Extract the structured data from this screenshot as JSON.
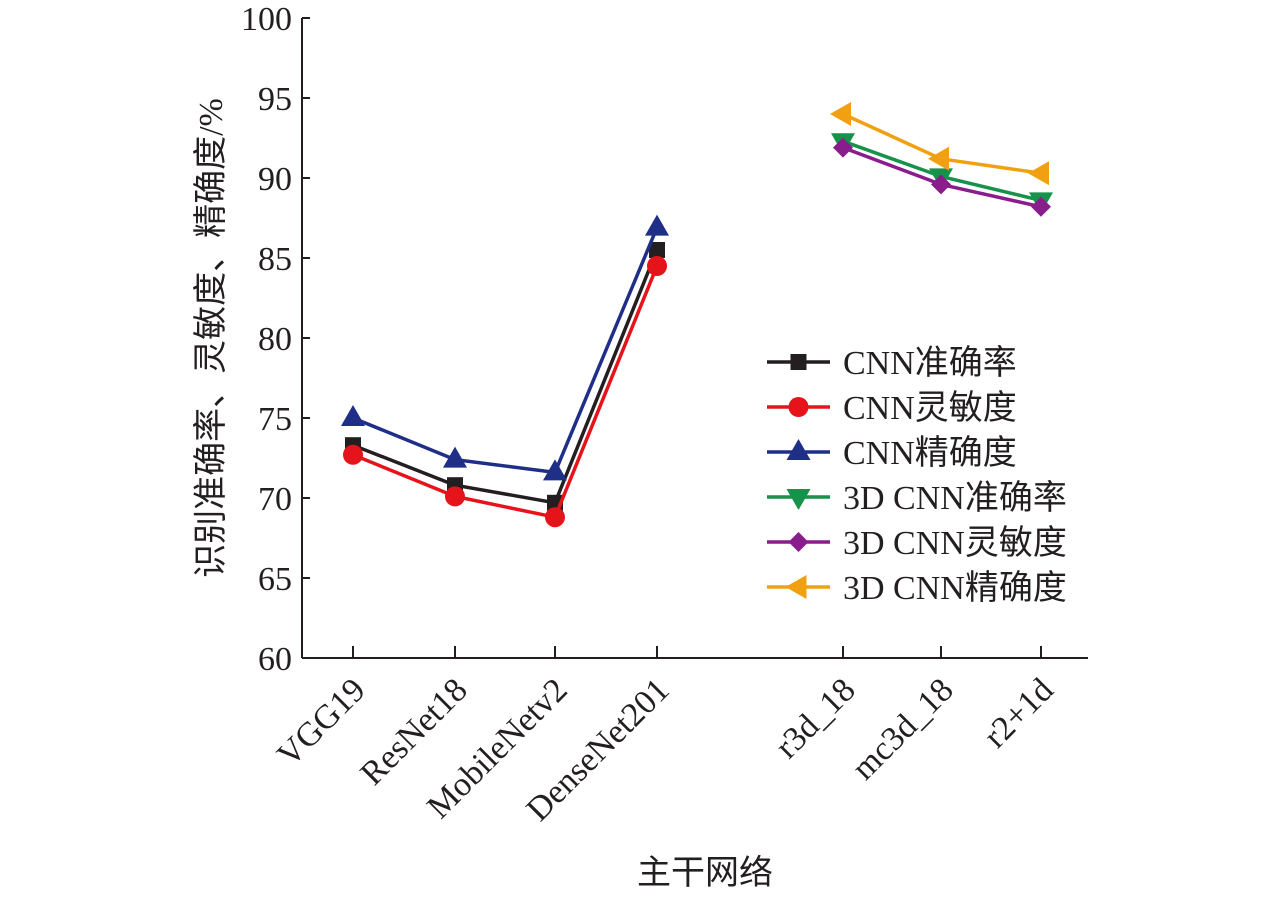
{
  "chart_data": {
    "type": "line",
    "categories": [
      "VGG19",
      "ResNet18",
      "MobileNetv2",
      "DenseNet201",
      "r3d_18",
      "mc3d_18",
      "r2+1d"
    ],
    "xlabel": "主干网络",
    "ylabel": "识别准确率、灵敏度、精确度/%",
    "ylim": [
      60,
      100
    ],
    "yticks": [
      60,
      65,
      70,
      75,
      80,
      85,
      90,
      95,
      100
    ],
    "grid": false,
    "legend": "right",
    "series": [
      {
        "name": "CNN准确率",
        "color": "#231f20",
        "marker": "square",
        "values": [
          73.3,
          70.8,
          69.7,
          85.5,
          null,
          null,
          null
        ]
      },
      {
        "name": "CNN灵敏度",
        "color": "#e5141b",
        "marker": "circle",
        "values": [
          72.7,
          70.1,
          68.8,
          84.5,
          null,
          null,
          null
        ]
      },
      {
        "name": "CNN精确度",
        "color": "#1f2f88",
        "marker": "triangle-up",
        "values": [
          75.0,
          72.4,
          71.6,
          86.9,
          null,
          null,
          null
        ]
      },
      {
        "name": "3D CNN准确率",
        "color": "#16924a",
        "marker": "triangle-down",
        "values": [
          null,
          null,
          null,
          null,
          92.3,
          90.1,
          88.6
        ]
      },
      {
        "name": "3D CNN灵敏度",
        "color": "#8a1d8c",
        "marker": "diamond",
        "values": [
          null,
          null,
          null,
          null,
          91.9,
          89.6,
          88.2
        ]
      },
      {
        "name": "3D CNN精确度",
        "color": "#f0a011",
        "marker": "triangle-left",
        "values": [
          null,
          null,
          null,
          null,
          94.0,
          91.2,
          90.3
        ]
      }
    ]
  }
}
